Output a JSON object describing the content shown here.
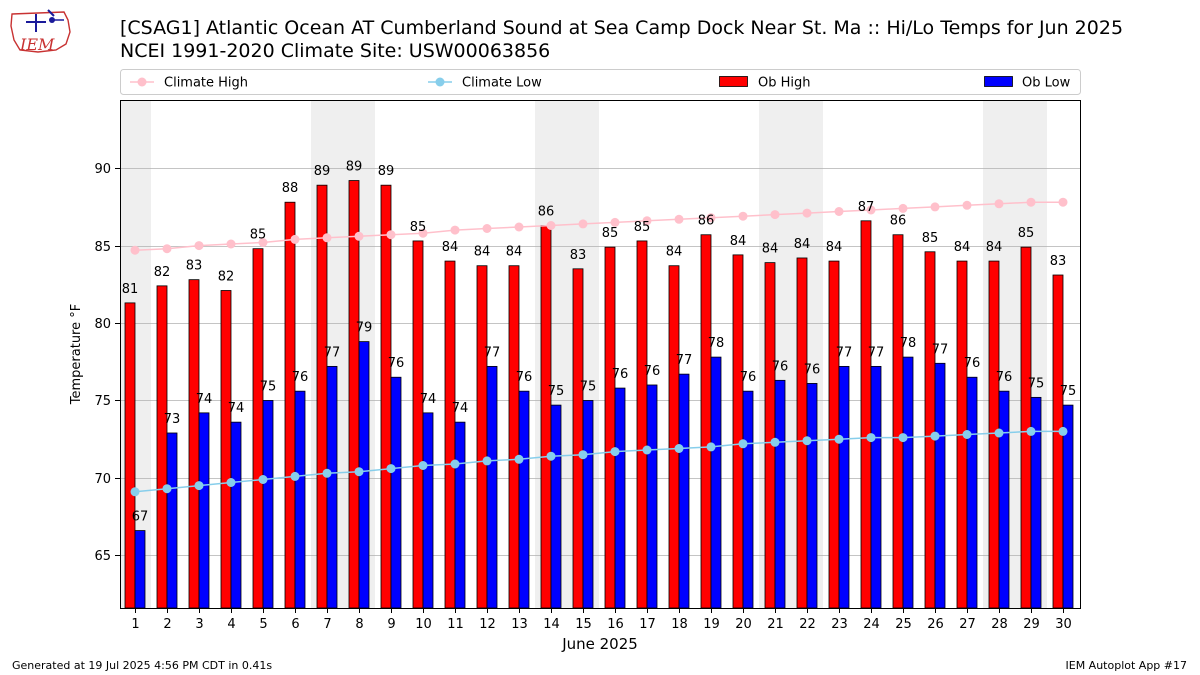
{
  "header": {
    "title_line1": "[CSAG1] Atlantic Ocean  AT Cumberland Sound at Sea Camp Dock Near St. Ma :: Hi/Lo Temps for Jun 2025",
    "title_line2": "NCEI 1991-2020 Climate Site: USW00063856",
    "logo_text": "IEM"
  },
  "footer": {
    "left": "Generated at 19 Jul 2025 4:56 PM CDT in 0.41s",
    "right": "IEM Autoplot App #17"
  },
  "colors": {
    "ob_high": "#ff0000",
    "ob_low": "#0000ff",
    "climate_high": "#ffc0cb",
    "climate_low": "#87ceeb",
    "weekend_shade": "#efefef",
    "grid": "#b0b0b0"
  },
  "chart_data": {
    "type": "bar",
    "xlabel": "June 2025",
    "ylabel": "Temperature °F",
    "ylim": [
      61.6,
      94.4
    ],
    "yticks": [
      65,
      70,
      75,
      80,
      85,
      90
    ],
    "grid": "horizontal",
    "legend_position": "top",
    "categories": [
      "1",
      "2",
      "3",
      "4",
      "5",
      "6",
      "7",
      "8",
      "9",
      "10",
      "11",
      "12",
      "13",
      "14",
      "15",
      "16",
      "17",
      "18",
      "19",
      "20",
      "21",
      "22",
      "23",
      "24",
      "25",
      "26",
      "27",
      "28",
      "29",
      "30"
    ],
    "shaded_days": [
      1,
      7,
      8,
      14,
      15,
      21,
      22,
      28,
      29
    ],
    "series": [
      {
        "name": "Ob High",
        "kind": "bar",
        "values": [
          81.3,
          82.4,
          82.8,
          82.1,
          84.8,
          87.8,
          88.9,
          89.2,
          88.9,
          85.3,
          84.0,
          83.7,
          83.7,
          86.3,
          83.5,
          84.9,
          85.3,
          83.7,
          85.7,
          84.4,
          83.9,
          84.2,
          84.0,
          86.6,
          85.7,
          84.6,
          84.0,
          84.0,
          84.9,
          83.1
        ],
        "labels": [
          "81",
          "82",
          "83",
          "82",
          "85",
          "88",
          "89",
          "89",
          "89",
          "85",
          "84",
          "84",
          "84",
          "86",
          "83",
          "85",
          "85",
          "84",
          "86",
          "84",
          "84",
          "84",
          "84",
          "87",
          "86",
          "85",
          "84",
          "84",
          "85",
          "83"
        ]
      },
      {
        "name": "Ob Low",
        "kind": "bar",
        "values": [
          66.6,
          72.9,
          74.2,
          73.6,
          75.0,
          75.6,
          77.2,
          78.8,
          76.5,
          74.2,
          73.6,
          77.2,
          75.6,
          74.7,
          75.0,
          75.8,
          76.0,
          76.7,
          77.8,
          75.6,
          76.3,
          76.1,
          77.2,
          77.2,
          77.8,
          77.4,
          76.5,
          75.6,
          75.2,
          74.7
        ],
        "labels": [
          "67",
          "73",
          "74",
          "74",
          "75",
          "76",
          "77",
          "79",
          "76",
          "74",
          "74",
          "77",
          "76",
          "75",
          "75",
          "76",
          "76",
          "77",
          "78",
          "76",
          "76",
          "76",
          "77",
          "77",
          "78",
          "77",
          "76",
          "76",
          "75",
          "75"
        ]
      },
      {
        "name": "Climate High",
        "kind": "line",
        "values": [
          84.7,
          84.8,
          85.0,
          85.1,
          85.2,
          85.4,
          85.5,
          85.6,
          85.7,
          85.8,
          86.0,
          86.1,
          86.2,
          86.3,
          86.4,
          86.5,
          86.6,
          86.7,
          86.8,
          86.9,
          87.0,
          87.1,
          87.2,
          87.3,
          87.4,
          87.5,
          87.6,
          87.7,
          87.8,
          87.8
        ]
      },
      {
        "name": "Climate Low",
        "kind": "line",
        "values": [
          69.1,
          69.3,
          69.5,
          69.7,
          69.9,
          70.1,
          70.3,
          70.4,
          70.6,
          70.8,
          70.9,
          71.1,
          71.2,
          71.4,
          71.5,
          71.7,
          71.8,
          71.9,
          72.0,
          72.2,
          72.3,
          72.4,
          72.5,
          72.6,
          72.6,
          72.7,
          72.8,
          72.9,
          73.0,
          73.0
        ]
      }
    ]
  }
}
